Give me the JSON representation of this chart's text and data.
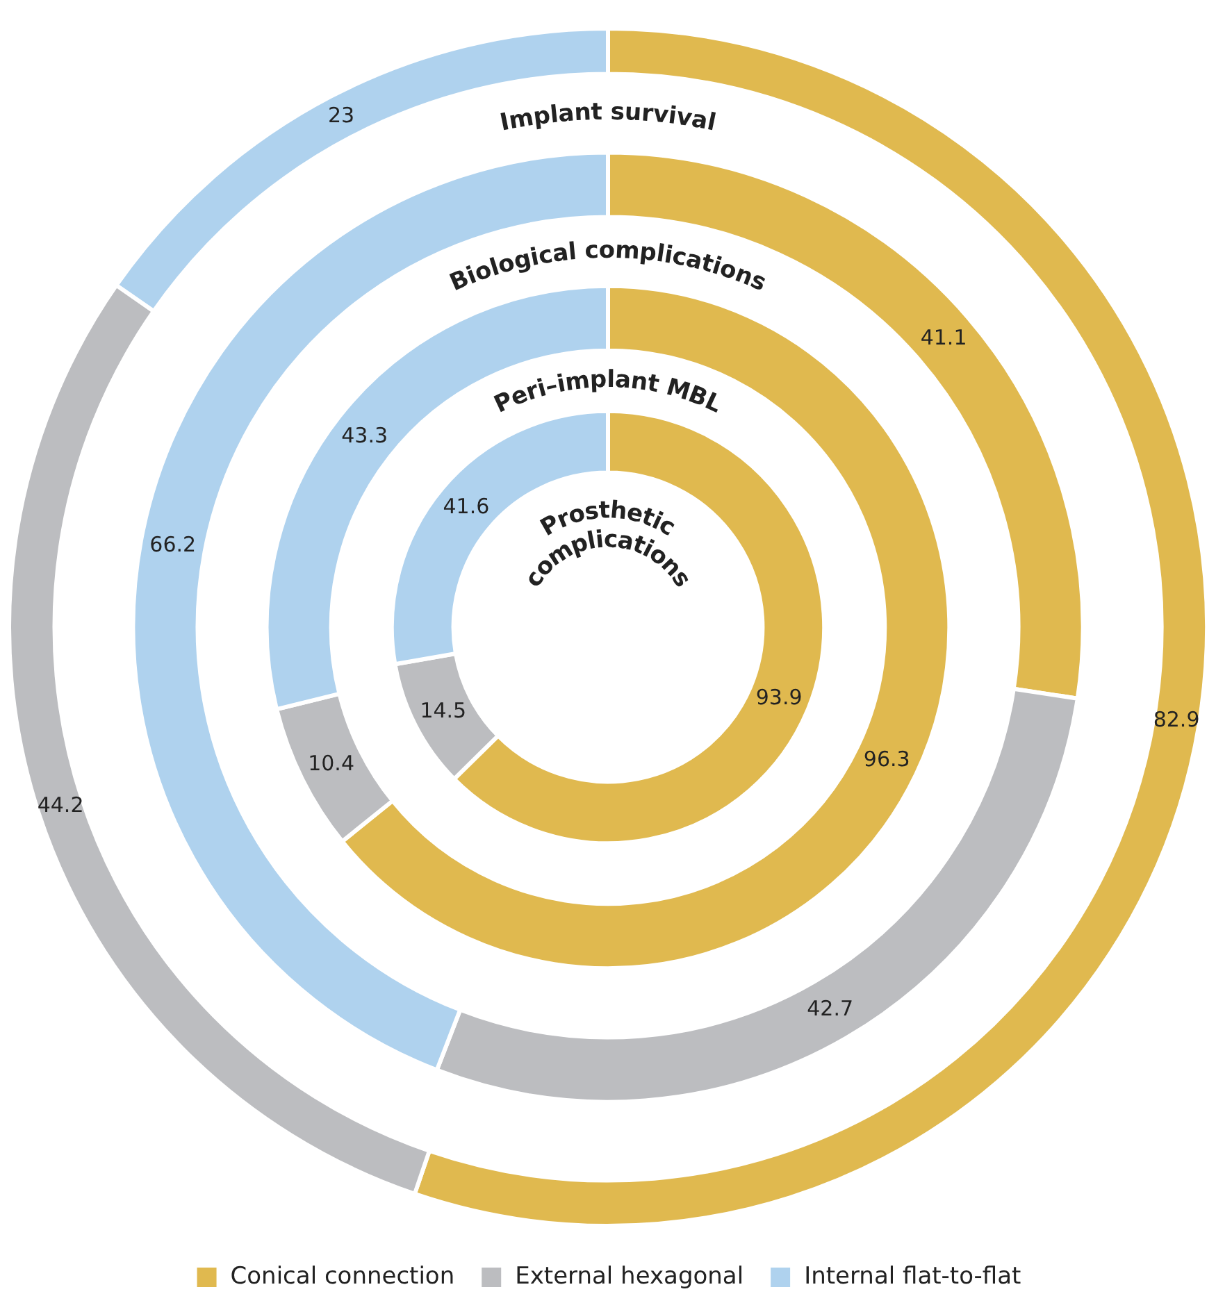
{
  "chart_data": {
    "type": "donut",
    "categories": [
      "Conical connection",
      "External hexagonal",
      "Internal flat-to-flat"
    ],
    "colors": [
      "#e0b94f",
      "#bcbdc0",
      "#afd2ee"
    ],
    "series": [
      {
        "name": "Implant survival",
        "values": [
          82.9,
          44.2,
          23
        ]
      },
      {
        "name": "Biological complications",
        "values": [
          41.1,
          42.7,
          66.2
        ]
      },
      {
        "name": "Peri–implant MBL",
        "values": [
          96.3,
          10.4,
          43.3
        ]
      },
      {
        "name": "Prosthetic complications",
        "values": [
          93.9,
          14.5,
          41.6
        ]
      }
    ],
    "data_labels": true,
    "legend": "bottom"
  }
}
